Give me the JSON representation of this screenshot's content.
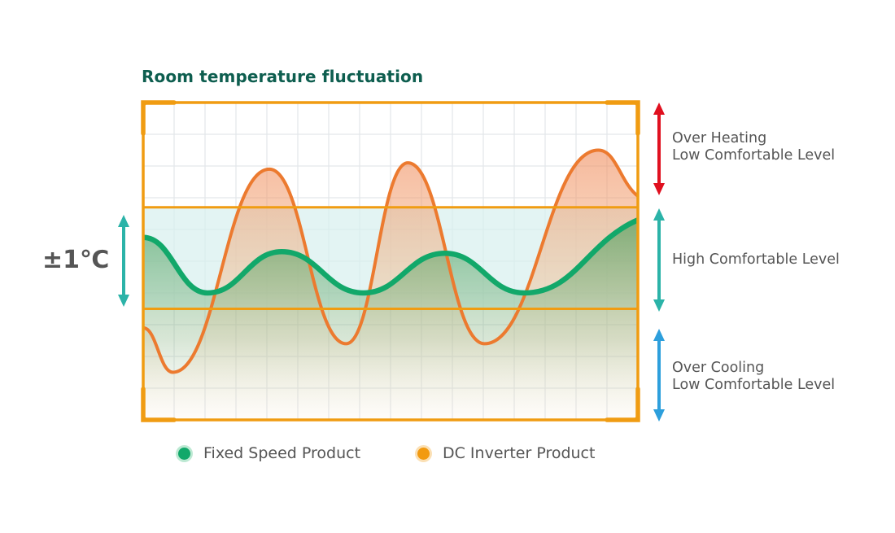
{
  "chart_data": {
    "type": "line",
    "title": "Room temperature fluctuation",
    "xlabel": "",
    "ylabel": "",
    "x_range": [
      0,
      10
    ],
    "ylim": [
      0,
      10
    ],
    "grid": true,
    "comfort_band": {
      "lower": 3.5,
      "upper": 6.7,
      "label": "±1℃",
      "color": "#2bb3a8"
    },
    "series": [
      {
        "name": "Fixed Speed Product",
        "color": "#12a86a",
        "x": [
          0,
          1.3,
          2.8,
          4.45,
          6.1,
          7.7,
          10
        ],
        "y": [
          5.75,
          4.0,
          5.3,
          4.0,
          5.25,
          4.0,
          6.3
        ]
      },
      {
        "name": "DC Inverter Product",
        "color": "#ec7a2f",
        "x": [
          0,
          0.6,
          2.55,
          4.1,
          5.35,
          6.9,
          9.2,
          10
        ],
        "y": [
          2.9,
          1.5,
          7.9,
          2.4,
          8.1,
          2.4,
          8.5,
          7.05
        ]
      }
    ],
    "legend": {
      "position": "bottom",
      "entries": [
        "Fixed Speed Product",
        "DC Inverter Product"
      ]
    },
    "zones": [
      {
        "label_line1": "Over Heating",
        "label_line2": "Low Comfortable Level",
        "color": "#e0101f"
      },
      {
        "label_line1": "High Comfortable Level",
        "label_line2": "",
        "color": "#2bb3a8"
      },
      {
        "label_line1": "Over Cooling",
        "label_line2": "Low Comfortable Level",
        "color": "#2d9fdc"
      }
    ],
    "frame_color": "#f09c12"
  }
}
